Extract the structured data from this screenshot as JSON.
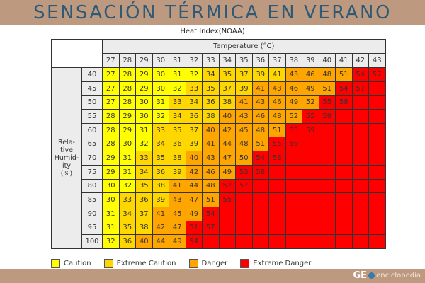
{
  "banner": {
    "title": "SENSACIÓN TÉRMICA EN VERANO"
  },
  "subtitle": "Heat Index(NOAA)",
  "table": {
    "temperature_header": "Temperature (°C)",
    "humidity_header": "Rela-\ntive\nHumid-\nity\n(%)",
    "temperatures": [
      "27",
      "28",
      "29",
      "30",
      "31",
      "32",
      "33",
      "34",
      "35",
      "36",
      "37",
      "38",
      "39",
      "40",
      "41",
      "42",
      "43"
    ]
  },
  "legend": [
    {
      "label": "Caution",
      "color": "#ffff00"
    },
    {
      "label": "Extreme Caution",
      "color": "#ffd700"
    },
    {
      "label": "Danger",
      "color": "#ffa500"
    },
    {
      "label": "Extreme Danger",
      "color": "#ff0000"
    }
  ],
  "footer": {
    "logo_ge": "GE",
    "logo_text": "enciclopedia"
  },
  "chart_data": {
    "type": "heatmap",
    "title": "Heat Index(NOAA)",
    "xlabel": "Temperature (°C)",
    "ylabel": "Relative Humidity (%)",
    "x": [
      27,
      28,
      29,
      30,
      31,
      32,
      33,
      34,
      35,
      36,
      37,
      38,
      39,
      40,
      41,
      42,
      43
    ],
    "y": [
      40,
      45,
      50,
      55,
      60,
      65,
      70,
      75,
      80,
      85,
      90,
      95,
      100
    ],
    "values": [
      [
        27,
        28,
        29,
        30,
        31,
        32,
        34,
        35,
        37,
        39,
        41,
        43,
        46,
        48,
        51,
        54,
        57
      ],
      [
        27,
        28,
        29,
        30,
        32,
        33,
        35,
        37,
        39,
        41,
        43,
        46,
        49,
        51,
        54,
        57,
        null
      ],
      [
        27,
        28,
        30,
        31,
        33,
        34,
        36,
        38,
        41,
        43,
        46,
        49,
        52,
        55,
        58,
        null,
        null
      ],
      [
        28,
        29,
        30,
        32,
        34,
        36,
        38,
        40,
        43,
        46,
        48,
        52,
        55,
        59,
        null,
        null,
        null
      ],
      [
        28,
        29,
        31,
        33,
        35,
        37,
        40,
        42,
        45,
        48,
        51,
        55,
        59,
        null,
        null,
        null,
        null
      ],
      [
        28,
        30,
        32,
        34,
        36,
        39,
        41,
        44,
        48,
        51,
        55,
        59,
        null,
        null,
        null,
        null,
        null
      ],
      [
        29,
        31,
        33,
        35,
        38,
        40,
        43,
        47,
        50,
        54,
        58,
        null,
        null,
        null,
        null,
        null,
        null
      ],
      [
        29,
        31,
        34,
        36,
        39,
        42,
        46,
        49,
        53,
        58,
        null,
        null,
        null,
        null,
        null,
        null,
        null
      ],
      [
        30,
        32,
        35,
        38,
        41,
        44,
        48,
        52,
        57,
        null,
        null,
        null,
        null,
        null,
        null,
        null,
        null
      ],
      [
        30,
        33,
        36,
        39,
        43,
        47,
        51,
        55,
        null,
        null,
        null,
        null,
        null,
        null,
        null,
        null,
        null
      ],
      [
        31,
        34,
        37,
        41,
        45,
        49,
        54,
        null,
        null,
        null,
        null,
        null,
        null,
        null,
        null,
        null,
        null
      ],
      [
        31,
        35,
        38,
        42,
        47,
        51,
        57,
        null,
        null,
        null,
        null,
        null,
        null,
        null,
        null,
        null,
        null
      ],
      [
        32,
        36,
        40,
        44,
        49,
        54,
        null,
        null,
        null,
        null,
        null,
        null,
        null,
        null,
        null,
        null,
        null
      ]
    ],
    "categories": [
      [
        "c",
        "c",
        "c",
        "c",
        "c",
        "c",
        "ec",
        "ec",
        "ec",
        "ec",
        "ec",
        "d",
        "d",
        "d",
        "d",
        "ed",
        "ed"
      ],
      [
        "c",
        "c",
        "c",
        "c",
        "c",
        "ec",
        "ec",
        "ec",
        "ec",
        "d",
        "d",
        "d",
        "d",
        "d",
        "ed",
        "ed",
        "ed"
      ],
      [
        "c",
        "c",
        "c",
        "c",
        "ec",
        "ec",
        "ec",
        "ec",
        "d",
        "d",
        "d",
        "d",
        "d",
        "ed",
        "ed",
        "ed",
        "ed"
      ],
      [
        "c",
        "c",
        "c",
        "c",
        "ec",
        "ec",
        "ec",
        "d",
        "d",
        "d",
        "d",
        "d",
        "ed",
        "ed",
        "ed",
        "ed",
        "ed"
      ],
      [
        "c",
        "c",
        "c",
        "ec",
        "ec",
        "ec",
        "d",
        "d",
        "d",
        "d",
        "d",
        "ed",
        "ed",
        "ed",
        "ed",
        "ed",
        "ed"
      ],
      [
        "c",
        "c",
        "c",
        "ec",
        "ec",
        "ec",
        "d",
        "d",
        "d",
        "d",
        "ed",
        "ed",
        "ed",
        "ed",
        "ed",
        "ed",
        "ed"
      ],
      [
        "c",
        "c",
        "ec",
        "ec",
        "ec",
        "d",
        "d",
        "d",
        "d",
        "ed",
        "ed",
        "ed",
        "ed",
        "ed",
        "ed",
        "ed",
        "ed"
      ],
      [
        "c",
        "c",
        "ec",
        "ec",
        "ec",
        "d",
        "d",
        "d",
        "ed",
        "ed",
        "ed",
        "ed",
        "ed",
        "ed",
        "ed",
        "ed",
        "ed"
      ],
      [
        "c",
        "c",
        "ec",
        "ec",
        "d",
        "d",
        "d",
        "ed",
        "ed",
        "ed",
        "ed",
        "ed",
        "ed",
        "ed",
        "ed",
        "ed",
        "ed"
      ],
      [
        "c",
        "ec",
        "ec",
        "ec",
        "d",
        "d",
        "d",
        "ed",
        "ed",
        "ed",
        "ed",
        "ed",
        "ed",
        "ed",
        "ed",
        "ed",
        "ed"
      ],
      [
        "c",
        "ec",
        "ec",
        "d",
        "d",
        "d",
        "ed",
        "ed",
        "ed",
        "ed",
        "ed",
        "ed",
        "ed",
        "ed",
        "ed",
        "ed",
        "ed"
      ],
      [
        "c",
        "ec",
        "ec",
        "d",
        "d",
        "ed",
        "ed",
        "ed",
        "ed",
        "ed",
        "ed",
        "ed",
        "ed",
        "ed",
        "ed",
        "ed",
        "ed"
      ],
      [
        "c",
        "ec",
        "d",
        "d",
        "d",
        "ed",
        "ed",
        "ed",
        "ed",
        "ed",
        "ed",
        "ed",
        "ed",
        "ed",
        "ed",
        "ed",
        "ed"
      ]
    ],
    "legend": [
      "Caution",
      "Extreme Caution",
      "Danger",
      "Extreme Danger"
    ],
    "legend_position": "bottom"
  }
}
